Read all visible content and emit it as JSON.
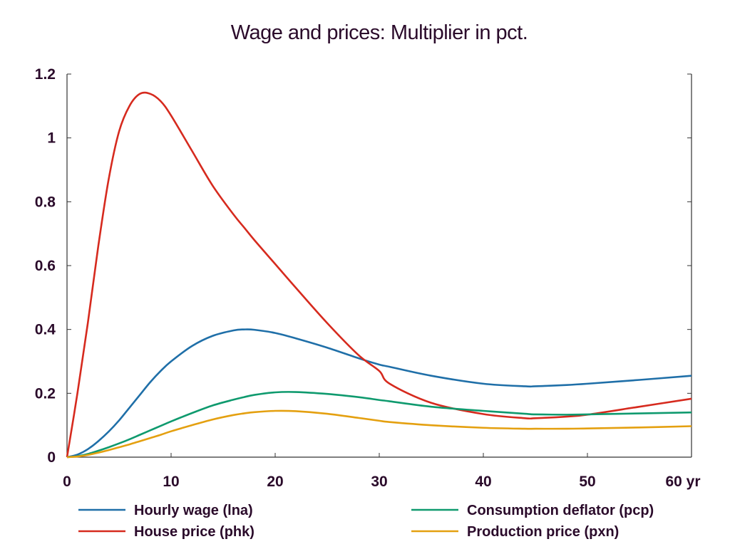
{
  "chart_data": {
    "type": "line",
    "title": "Wage and prices: Multiplier in pct.",
    "xlabel": "",
    "ylabel": "",
    "x_unit_label": "yr",
    "xlim": [
      0,
      60
    ],
    "ylim": [
      0,
      1.2
    ],
    "x_ticks": [
      0,
      10,
      20,
      30,
      40,
      50,
      60
    ],
    "x_tick_labels": [
      "0",
      "10",
      "20",
      "30",
      "40",
      "50",
      "60 yr"
    ],
    "y_ticks": [
      0,
      0.2,
      0.4,
      0.6,
      0.8,
      1.0,
      1.2
    ],
    "y_tick_labels": [
      "0",
      "0.2",
      "0.4",
      "0.6",
      "0.8",
      "1",
      "1.2"
    ],
    "grid": false,
    "legend_position": "bottom",
    "x": [
      0,
      1,
      2,
      3,
      4,
      5,
      6,
      7,
      8,
      9,
      10,
      12,
      14,
      16,
      17,
      18,
      20,
      22,
      25,
      28,
      30,
      31,
      35,
      40,
      44,
      45,
      48,
      50,
      55,
      60
    ],
    "series": [
      {
        "name": "Hourly wage (lna)",
        "color": "#1f6fa8",
        "values": [
          0,
          0.008,
          0.025,
          0.05,
          0.08,
          0.115,
          0.155,
          0.195,
          0.235,
          0.27,
          0.3,
          0.348,
          0.38,
          0.397,
          0.4,
          0.399,
          0.389,
          0.372,
          0.343,
          0.31,
          0.29,
          0.283,
          0.255,
          0.23,
          0.222,
          0.222,
          0.226,
          0.23,
          0.242,
          0.255
        ]
      },
      {
        "name": "House price (phk)",
        "color": "#d62a1e",
        "values": [
          0,
          0.2,
          0.42,
          0.66,
          0.87,
          1.02,
          1.1,
          1.138,
          1.138,
          1.115,
          1.07,
          0.96,
          0.85,
          0.76,
          0.72,
          0.68,
          0.605,
          0.53,
          0.42,
          0.32,
          0.27,
          0.23,
          0.17,
          0.135,
          0.122,
          0.122,
          0.127,
          0.133,
          0.158,
          0.183
        ]
      },
      {
        "name": "Consumption deflator (pcp)",
        "color": "#0f9a6e",
        "values": [
          0,
          0.003,
          0.01,
          0.02,
          0.031,
          0.043,
          0.056,
          0.07,
          0.084,
          0.098,
          0.112,
          0.138,
          0.162,
          0.18,
          0.188,
          0.195,
          0.203,
          0.204,
          0.198,
          0.188,
          0.179,
          0.175,
          0.158,
          0.145,
          0.136,
          0.134,
          0.133,
          0.134,
          0.137,
          0.14
        ]
      },
      {
        "name": "Production price (pxn)",
        "color": "#e4a010",
        "values": [
          0,
          0.002,
          0.007,
          0.014,
          0.022,
          0.031,
          0.04,
          0.05,
          0.06,
          0.07,
          0.081,
          0.1,
          0.118,
          0.132,
          0.137,
          0.141,
          0.145,
          0.144,
          0.136,
          0.123,
          0.114,
          0.11,
          0.1,
          0.092,
          0.089,
          0.089,
          0.089,
          0.09,
          0.093,
          0.097
        ]
      }
    ]
  }
}
